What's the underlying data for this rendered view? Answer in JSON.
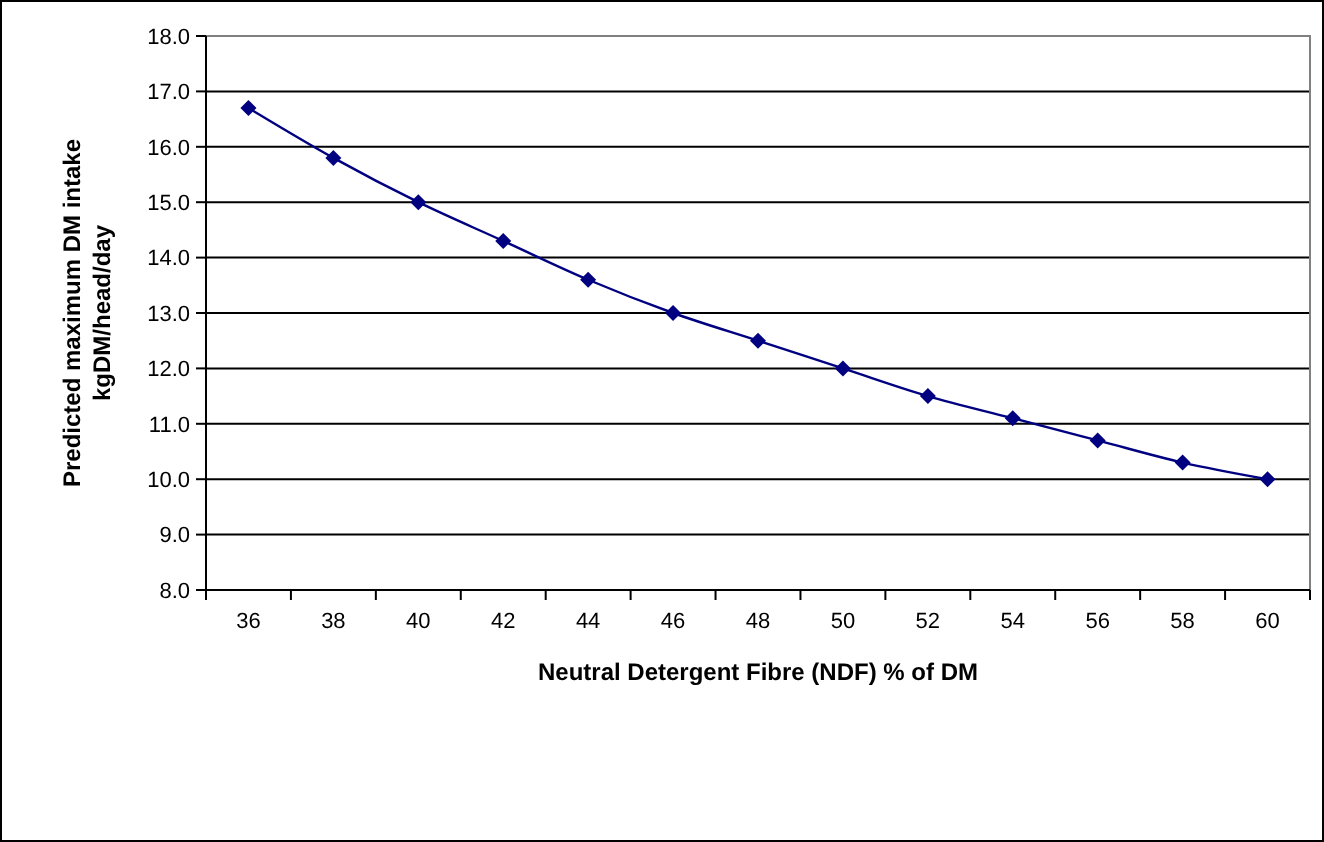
{
  "chart_data": {
    "type": "line",
    "xlabel": "Neutral Detergent Fibre (NDF) % of DM",
    "ylabel": "Predicted maximum DM intake\nkgDM/head/day",
    "categories": [
      "36",
      "38",
      "40",
      "42",
      "44",
      "46",
      "48",
      "50",
      "52",
      "54",
      "56",
      "58",
      "60"
    ],
    "series": [
      {
        "color": "#000080",
        "values": [
          16.7,
          15.8,
          15.0,
          14.3,
          13.6,
          13.0,
          12.5,
          12.0,
          11.5,
          11.1,
          10.7,
          10.3,
          10.0
        ]
      }
    ],
    "ylim": [
      8,
      18
    ],
    "yticks": [
      {
        "value": 8,
        "label": "8.0"
      },
      {
        "value": 9,
        "label": "9.0"
      },
      {
        "value": 10,
        "label": "10.0"
      },
      {
        "value": 11,
        "label": "11.0"
      },
      {
        "value": 12,
        "label": "12.0"
      },
      {
        "value": 13,
        "label": "13.0"
      },
      {
        "value": 14,
        "label": "14.0"
      },
      {
        "value": 15,
        "label": "15.0"
      },
      {
        "value": 16,
        "label": "16.0"
      },
      {
        "value": 17,
        "label": "17.0"
      },
      {
        "value": 18,
        "label": "18.0"
      }
    ],
    "grid": "y",
    "marker": "diamond",
    "line_style": "solid"
  }
}
